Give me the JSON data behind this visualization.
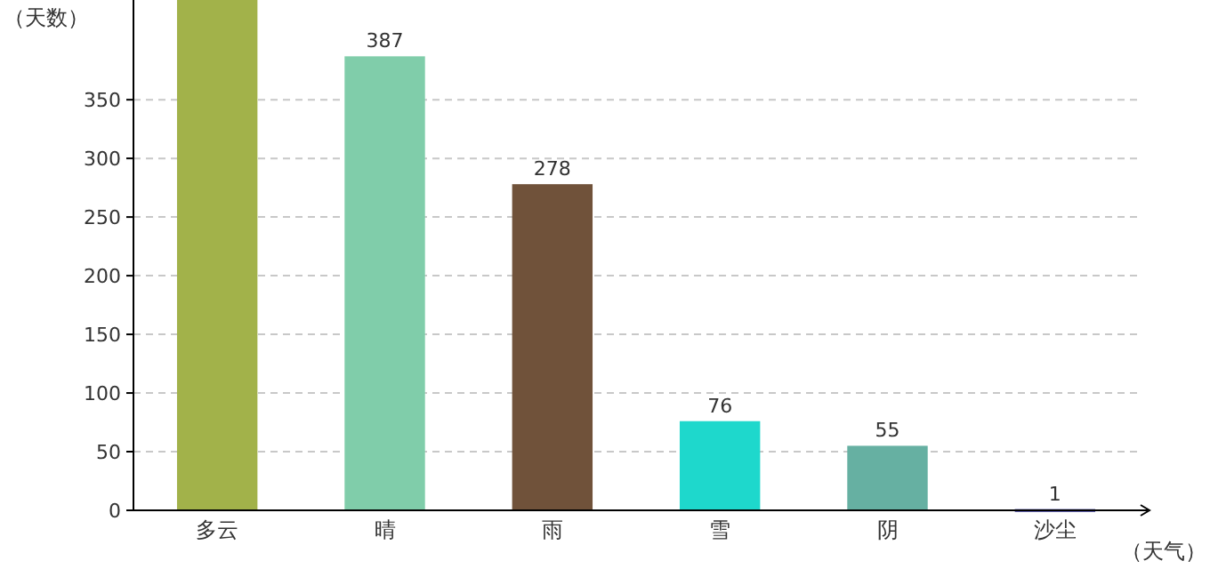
{
  "chart_data": {
    "type": "bar",
    "ylabel": "（天数）",
    "xlabel": "（天气）",
    "categories": [
      "多云",
      "晴",
      "雨",
      "雪",
      "阴",
      "沙尘"
    ],
    "values": [
      435,
      387,
      278,
      76,
      55,
      1
    ],
    "value_labels": [
      null,
      "387",
      "278",
      "76",
      "55",
      "1"
    ],
    "colors": [
      "#a2b24a",
      "#80cdaa",
      "#70523a",
      "#1ed8cc",
      "#66b0a2",
      "#1a1a8a"
    ],
    "ylim": [
      0,
      435
    ],
    "yticks": [
      0,
      50,
      100,
      150,
      200,
      250,
      300,
      350
    ],
    "grid": "y"
  }
}
